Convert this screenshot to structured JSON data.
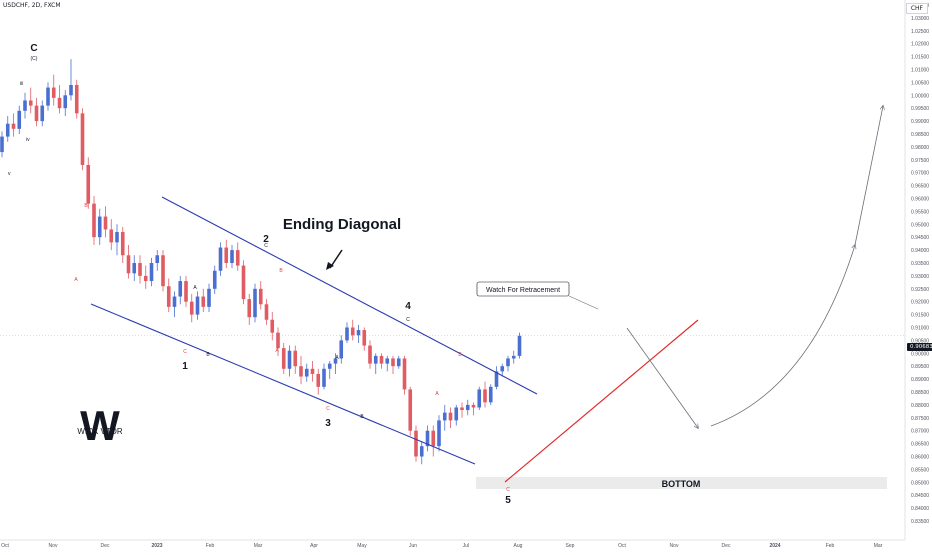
{
  "header": {
    "symbol": "USDCHF, 2D, FXCM",
    "currency": "CHF",
    "last_price": "0.90683"
  },
  "colors": {
    "up_candle": "#4a6fd1",
    "down_candle": "#e05c63",
    "channel_lines": "#2b3bb0",
    "support_line": "#e32b2b",
    "projection_arrows": "#6b6e78",
    "wave_letters_red": "#e0393f",
    "bottom_zone": "#ebebeb"
  },
  "chart_data": {
    "type": "candlestick",
    "x_tick_labels": [
      "Oct",
      "Nov",
      "Dec",
      "2023",
      "Feb",
      "Mar",
      "Apr",
      "May",
      "Jun",
      "Jul",
      "Aug",
      "Sep",
      "Oct",
      "Nov",
      "Dec",
      "2024",
      "Feb",
      "Mar"
    ],
    "y_tick_labels": [
      "1.03500",
      "1.03000",
      "1.02500",
      "1.02000",
      "1.01500",
      "1.01000",
      "1.00500",
      "1.00000",
      "0.99500",
      "0.99000",
      "0.98500",
      "0.98000",
      "0.97500",
      "0.97000",
      "0.96500",
      "0.96000",
      "0.95500",
      "0.95000",
      "0.94500",
      "0.94000",
      "0.93500",
      "0.93000",
      "0.92500",
      "0.92000",
      "0.91500",
      "0.91000",
      "0.90500",
      "0.90000",
      "0.89500",
      "0.89000",
      "0.88500",
      "0.88000",
      "0.87500",
      "0.87000",
      "0.86500",
      "0.86000",
      "0.85500",
      "0.85000",
      "0.84500",
      "0.84000",
      "0.83500"
    ],
    "ylim": [
      0.8335,
      1.0365
    ],
    "last_price": 0.90683,
    "candles": [
      [
        0.978,
        0.986,
        0.976,
        0.984
      ],
      [
        0.984,
        0.992,
        0.982,
        0.989
      ],
      [
        0.989,
        0.993,
        0.984,
        0.987
      ],
      [
        0.987,
        0.996,
        0.985,
        0.994
      ],
      [
        0.994,
        1.001,
        0.991,
        0.998
      ],
      [
        0.998,
        1.003,
        0.993,
        0.996
      ],
      [
        0.996,
        0.999,
        0.988,
        0.99
      ],
      [
        0.99,
        0.998,
        0.988,
        0.996
      ],
      [
        0.996,
        1.005,
        0.994,
        1.003
      ],
      [
        1.003,
        1.008,
        0.996,
        0.999
      ],
      [
        0.999,
        1.004,
        0.993,
        0.995
      ],
      [
        0.995,
        1.002,
        0.992,
        1.0
      ],
      [
        1.0,
        1.014,
        0.998,
        1.004
      ],
      [
        1.004,
        1.006,
        0.991,
        0.993
      ],
      [
        0.993,
        0.995,
        0.971,
        0.973
      ],
      [
        0.973,
        0.976,
        0.956,
        0.958
      ],
      [
        0.958,
        0.961,
        0.942,
        0.945
      ],
      [
        0.945,
        0.956,
        0.942,
        0.953
      ],
      [
        0.953,
        0.957,
        0.945,
        0.948
      ],
      [
        0.948,
        0.952,
        0.94,
        0.943
      ],
      [
        0.943,
        0.95,
        0.938,
        0.947
      ],
      [
        0.947,
        0.949,
        0.935,
        0.938
      ],
      [
        0.938,
        0.942,
        0.929,
        0.931
      ],
      [
        0.931,
        0.938,
        0.928,
        0.935
      ],
      [
        0.935,
        0.938,
        0.927,
        0.93
      ],
      [
        0.93,
        0.934,
        0.925,
        0.928
      ],
      [
        0.928,
        0.937,
        0.926,
        0.935
      ],
      [
        0.935,
        0.94,
        0.932,
        0.938
      ],
      [
        0.938,
        0.94,
        0.924,
        0.926
      ],
      [
        0.926,
        0.929,
        0.916,
        0.918
      ],
      [
        0.918,
        0.924,
        0.914,
        0.922
      ],
      [
        0.922,
        0.93,
        0.919,
        0.928
      ],
      [
        0.928,
        0.93,
        0.918,
        0.92
      ],
      [
        0.92,
        0.923,
        0.912,
        0.915
      ],
      [
        0.915,
        0.924,
        0.913,
        0.922
      ],
      [
        0.922,
        0.925,
        0.916,
        0.918
      ],
      [
        0.918,
        0.927,
        0.916,
        0.925
      ],
      [
        0.925,
        0.934,
        0.923,
        0.932
      ],
      [
        0.932,
        0.943,
        0.93,
        0.941
      ],
      [
        0.941,
        0.944,
        0.933,
        0.935
      ],
      [
        0.935,
        0.942,
        0.933,
        0.94
      ],
      [
        0.94,
        0.943,
        0.932,
        0.934
      ],
      [
        0.934,
        0.936,
        0.919,
        0.921
      ],
      [
        0.921,
        0.923,
        0.911,
        0.914
      ],
      [
        0.914,
        0.927,
        0.912,
        0.925
      ],
      [
        0.925,
        0.928,
        0.917,
        0.919
      ],
      [
        0.919,
        0.921,
        0.911,
        0.913
      ],
      [
        0.913,
        0.916,
        0.905,
        0.908
      ],
      [
        0.908,
        0.91,
        0.899,
        0.902
      ],
      [
        0.902,
        0.904,
        0.892,
        0.894
      ],
      [
        0.894,
        0.903,
        0.891,
        0.901
      ],
      [
        0.901,
        0.903,
        0.892,
        0.895
      ],
      [
        0.895,
        0.899,
        0.888,
        0.891
      ],
      [
        0.891,
        0.896,
        0.889,
        0.894
      ],
      [
        0.894,
        0.897,
        0.889,
        0.892
      ],
      [
        0.892,
        0.894,
        0.884,
        0.887
      ],
      [
        0.887,
        0.896,
        0.886,
        0.894
      ],
      [
        0.894,
        0.897,
        0.89,
        0.896
      ],
      [
        0.896,
        0.9,
        0.892,
        0.898
      ],
      [
        0.898,
        0.907,
        0.896,
        0.905
      ],
      [
        0.905,
        0.912,
        0.904,
        0.91
      ],
      [
        0.91,
        0.913,
        0.905,
        0.907
      ],
      [
        0.907,
        0.911,
        0.904,
        0.909
      ],
      [
        0.909,
        0.91,
        0.901,
        0.903
      ],
      [
        0.903,
        0.905,
        0.894,
        0.896
      ],
      [
        0.896,
        0.9,
        0.892,
        0.899
      ],
      [
        0.899,
        0.9,
        0.894,
        0.896
      ],
      [
        0.896,
        0.899,
        0.893,
        0.898
      ],
      [
        0.898,
        0.899,
        0.892,
        0.895
      ],
      [
        0.895,
        0.899,
        0.894,
        0.898
      ],
      [
        0.898,
        0.899,
        0.884,
        0.886
      ],
      [
        0.886,
        0.887,
        0.868,
        0.87
      ],
      [
        0.87,
        0.872,
        0.858,
        0.86
      ],
      [
        0.86,
        0.866,
        0.857,
        0.864
      ],
      [
        0.864,
        0.872,
        0.862,
        0.87
      ],
      [
        0.87,
        0.872,
        0.86,
        0.864
      ],
      [
        0.864,
        0.876,
        0.862,
        0.874
      ],
      [
        0.874,
        0.88,
        0.87,
        0.877
      ],
      [
        0.877,
        0.879,
        0.871,
        0.874
      ],
      [
        0.874,
        0.88,
        0.872,
        0.879
      ],
      [
        0.879,
        0.881,
        0.875,
        0.878
      ],
      [
        0.878,
        0.882,
        0.876,
        0.88
      ],
      [
        0.88,
        0.881,
        0.876,
        0.879
      ],
      [
        0.879,
        0.887,
        0.878,
        0.886
      ],
      [
        0.886,
        0.889,
        0.879,
        0.881
      ],
      [
        0.881,
        0.888,
        0.88,
        0.887
      ],
      [
        0.887,
        0.895,
        0.886,
        0.893
      ],
      [
        0.893,
        0.896,
        0.891,
        0.895
      ],
      [
        0.895,
        0.899,
        0.893,
        0.898
      ],
      [
        0.898,
        0.901,
        0.896,
        0.899
      ],
      [
        0.899,
        0.908,
        0.898,
        0.9068
      ]
    ],
    "annotations": {
      "title": "Ending Diagonal",
      "note": "Watch For Retracement",
      "zone_label": "BOTTOM",
      "wave_numbers": [
        "1",
        "2",
        "3",
        "4",
        "5"
      ],
      "top_label": "C",
      "top_sublabel": "(C)",
      "minor_labels": [
        "iii",
        "iv",
        "v"
      ],
      "correction_letters": [
        "A",
        "B",
        "C"
      ],
      "watermark": "WICK VTOR"
    }
  }
}
